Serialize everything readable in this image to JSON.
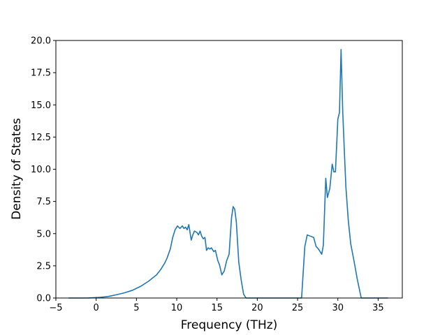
{
  "chart_data": {
    "type": "line",
    "title": "",
    "xlabel": "Frequency (THz)",
    "ylabel": "Density of States",
    "xlim": [
      -5.0,
      38.0
    ],
    "ylim": [
      0.0,
      20.0
    ],
    "xticks": [
      -5,
      0,
      5,
      10,
      15,
      20,
      25,
      30,
      35
    ],
    "xtick_labels": [
      "−5",
      "0",
      "5",
      "10",
      "15",
      "20",
      "25",
      "30",
      "35"
    ],
    "yticks": [
      0,
      2.5,
      5,
      7.5,
      10,
      12.5,
      15,
      17.5,
      20
    ],
    "ytick_labels": [
      "0.0",
      "2.5",
      "5.0",
      "7.5",
      "10.0",
      "12.5",
      "15.0",
      "17.5",
      "20.0"
    ],
    "grid": false,
    "legend": "none",
    "line_color": "#1f77b4",
    "series": [
      {
        "x": [
          -3.4,
          -1.0,
          0.5,
          1.5,
          2.5,
          3.5,
          4.5,
          5.5,
          6.5,
          7.5,
          8.0,
          8.5,
          8.8,
          9.2,
          9.5,
          9.8,
          10.1,
          10.4,
          10.7,
          10.9,
          11.1,
          11.3,
          11.5,
          11.8,
          12.0,
          12.2,
          12.5,
          12.7,
          12.9,
          13.1,
          13.3,
          13.5,
          13.7,
          13.9,
          14.1,
          14.3,
          14.6,
          14.8,
          15.1,
          15.3,
          15.6,
          15.9,
          16.2,
          16.5,
          16.8,
          17.0,
          17.2,
          17.4,
          17.7,
          18.0,
          18.3,
          18.6,
          20.0,
          23.0,
          25.5,
          25.9,
          26.2,
          26.6,
          27.0,
          27.3,
          27.6,
          28.0,
          28.2,
          28.5,
          28.7,
          29.0,
          29.3,
          29.5,
          29.7,
          30.0,
          30.2,
          30.4,
          30.6,
          30.8,
          31.0,
          31.3,
          31.6,
          32.0,
          32.4,
          32.9,
          35.0,
          36.2
        ],
        "y": [
          0.0,
          0.0,
          0.05,
          0.12,
          0.25,
          0.4,
          0.6,
          0.9,
          1.3,
          1.8,
          2.2,
          2.7,
          3.1,
          3.8,
          4.7,
          5.3,
          5.6,
          5.4,
          5.6,
          5.4,
          5.5,
          5.3,
          5.7,
          4.5,
          4.9,
          5.2,
          5.1,
          4.9,
          5.2,
          4.8,
          4.6,
          4.7,
          3.7,
          3.9,
          3.8,
          3.9,
          3.6,
          3.7,
          2.9,
          2.6,
          1.8,
          2.1,
          2.9,
          3.4,
          6.2,
          7.1,
          6.9,
          5.9,
          2.8,
          1.4,
          0.3,
          0.0,
          0.0,
          0.0,
          0.0,
          4.0,
          4.9,
          4.8,
          4.7,
          4.0,
          3.8,
          3.4,
          4.1,
          9.3,
          7.8,
          8.5,
          10.4,
          9.8,
          9.8,
          13.9,
          14.4,
          19.3,
          14.6,
          11.5,
          8.6,
          6.0,
          4.2,
          2.9,
          1.5,
          0.0,
          0.0,
          0.0
        ]
      }
    ]
  }
}
